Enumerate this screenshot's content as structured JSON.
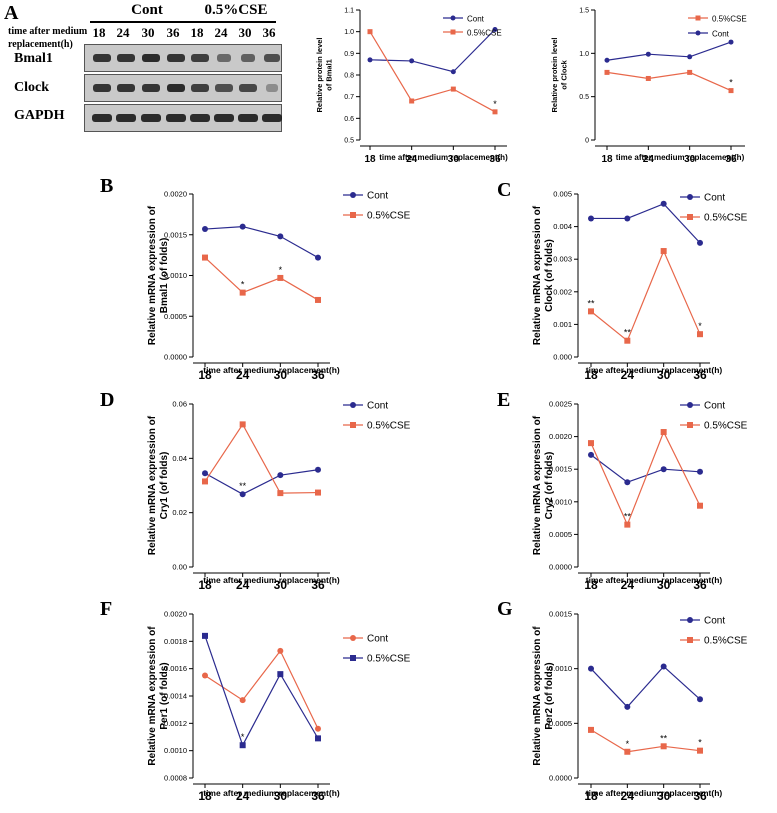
{
  "panel_letters": [
    "A",
    "B",
    "C",
    "D",
    "E",
    "F",
    "G"
  ],
  "blot": {
    "groups": [
      "Cont",
      "0.5%CSE"
    ],
    "header_line1": "time after medium",
    "header_line2": "replacement(h)",
    "times": [
      "18",
      "24",
      "30",
      "36",
      "18",
      "24",
      "30",
      "36"
    ],
    "rows": [
      "Bmal1",
      "Clock",
      "GAPDH"
    ],
    "colors": {
      "strip": "#c9c9c9",
      "band": "#1a1a1a"
    }
  },
  "colors": {
    "cont": "#2b2b8f",
    "cse": "#e8674a",
    "axis": "#000000"
  },
  "chart_data": [
    {
      "id": "A-bmal1",
      "type": "line",
      "categories": [
        "18",
        "24",
        "30",
        "36"
      ],
      "ylabel": "Relative protein level of Bmal1",
      "ylabel_lines": [
        "Relative protein level",
        "of Bmal1"
      ],
      "xlabel": "time after medium replacement(h)",
      "ylim": [
        0.5,
        1.1
      ],
      "yticks": [
        "0.5",
        "0.6",
        "0.7",
        "0.8",
        "0.9",
        "1.0",
        "1.1"
      ],
      "legend": "top-right",
      "legend_order": [
        "Cont",
        "0.5%CSE"
      ],
      "series": [
        {
          "name": "Cont",
          "values": [
            0.87,
            0.865,
            0.815,
            1.01
          ],
          "marks": [
            "",
            "",
            "",
            ""
          ]
        },
        {
          "name": "0.5%CSE",
          "values": [
            1.0,
            0.68,
            0.735,
            0.63
          ],
          "marks": [
            "",
            "",
            "",
            "*"
          ]
        }
      ]
    },
    {
      "id": "A-clock",
      "type": "line",
      "categories": [
        "18",
        "24",
        "30",
        "36"
      ],
      "ylabel": "Relative protein level of Clock",
      "ylabel_lines": [
        "Relative protein level",
        "of Clock"
      ],
      "xlabel": "time after medium replacement(h)",
      "ylim": [
        0,
        1.5
      ],
      "yticks": [
        "0",
        "0.5",
        "1.0",
        "1.5"
      ],
      "legend": "top-right",
      "legend_order": [
        "0.5%CSE",
        "Cont"
      ],
      "series": [
        {
          "name": "Cont",
          "values": [
            0.92,
            0.99,
            0.96,
            1.13
          ],
          "marks": [
            "",
            "",
            "",
            ""
          ]
        },
        {
          "name": "0.5%CSE",
          "values": [
            0.78,
            0.71,
            0.78,
            0.57
          ],
          "marks": [
            "",
            "",
            "",
            "*"
          ]
        }
      ]
    },
    {
      "id": "B",
      "type": "line",
      "categories": [
        "18",
        "24",
        "30",
        "36"
      ],
      "ylabel": "Relative mRNA expression of Bmal1 (of folds)",
      "ylabel_lines": [
        "Relative mRNA expression of",
        "Bmal1 (of folds)"
      ],
      "xlabel": "time after medium replacement(h)",
      "ylim": [
        0,
        0.002
      ],
      "yticks": [
        "0.0000",
        "0.0005",
        "0.0010",
        "0.0015",
        "0.0020"
      ],
      "legend": "top-right",
      "legend_order": [
        "Cont",
        "0.5%CSE"
      ],
      "series": [
        {
          "name": "Cont",
          "values": [
            0.00157,
            0.0016,
            0.00148,
            0.00122
          ],
          "marks": [
            "",
            "",
            "",
            ""
          ]
        },
        {
          "name": "0.5%CSE",
          "values": [
            0.00122,
            0.00079,
            0.00097,
            0.0007
          ],
          "marks": [
            "",
            "*",
            "*",
            ""
          ]
        }
      ]
    },
    {
      "id": "C",
      "type": "line",
      "categories": [
        "18",
        "24",
        "30",
        "36"
      ],
      "ylabel": "Relative mRNA expression of Clock (of folds)",
      "ylabel_lines": [
        "Relative mRNA expression of",
        "Clock (of folds)"
      ],
      "xlabel": "time after medium replacement(h)",
      "ylim": [
        0,
        0.005
      ],
      "yticks": [
        "0.000",
        "0.001",
        "0.002",
        "0.003",
        "0.004",
        "0.005"
      ],
      "legend": "top-right",
      "legend_order": [
        "Cont",
        "0.5%CSE"
      ],
      "series": [
        {
          "name": "Cont",
          "values": [
            0.00425,
            0.00425,
            0.0047,
            0.0035
          ],
          "marks": [
            "",
            "",
            "",
            ""
          ]
        },
        {
          "name": "0.5%CSE",
          "values": [
            0.0014,
            0.0005,
            0.00325,
            0.0007
          ],
          "marks": [
            "**",
            "**",
            "",
            "*"
          ]
        }
      ]
    },
    {
      "id": "D",
      "type": "line",
      "categories": [
        "18",
        "24",
        "30",
        "36"
      ],
      "ylabel": "Relative mRNA expression of Cry1 (of folds)",
      "ylabel_lines": [
        "Relative mRNA expression of",
        "Cry1 (of folds)"
      ],
      "xlabel": "time after medium replacement(h)",
      "ylim": [
        0,
        0.06
      ],
      "yticks": [
        "0.00",
        "0.02",
        "0.04",
        "0.06"
      ],
      "legend": "top-right",
      "legend_order": [
        "Cont",
        "0.5%CSE"
      ],
      "series": [
        {
          "name": "Cont",
          "values": [
            0.0345,
            0.0268,
            0.0338,
            0.0358
          ],
          "marks": [
            "",
            "**",
            "",
            ""
          ]
        },
        {
          "name": "0.5%CSE",
          "values": [
            0.0315,
            0.0525,
            0.0272,
            0.0274
          ],
          "marks": [
            "",
            "",
            "",
            ""
          ]
        }
      ]
    },
    {
      "id": "E",
      "type": "line",
      "categories": [
        "18",
        "24",
        "30",
        "36"
      ],
      "ylabel": "Relative mRNA expression of Cry2 (of folds)",
      "ylabel_lines": [
        "Relative mRNA expression of",
        "Cry2 (of folds)"
      ],
      "xlabel": "time after medium replacement(h)",
      "ylim": [
        0,
        0.0025
      ],
      "yticks": [
        "0.0000",
        "0.0005",
        "0.0010",
        "0.0015",
        "0.0020",
        "0.0025"
      ],
      "legend": "top-right",
      "legend_order": [
        "Cont",
        "0.5%CSE"
      ],
      "series": [
        {
          "name": "Cont",
          "values": [
            0.00172,
            0.0013,
            0.0015,
            0.00146
          ],
          "marks": [
            "",
            "",
            "",
            ""
          ]
        },
        {
          "name": "0.5%CSE",
          "values": [
            0.0019,
            0.00065,
            0.00207,
            0.00094
          ],
          "marks": [
            "",
            "**",
            "",
            ""
          ]
        }
      ]
    },
    {
      "id": "F",
      "type": "line",
      "categories": [
        "18",
        "24",
        "30",
        "36"
      ],
      "ylabel": "Relative mRNA expression of Per1 (of folds)",
      "ylabel_lines": [
        "Relative mRNA expression of",
        "Per1 (of folds)"
      ],
      "xlabel": "time after medium replacement(h)",
      "ylim": [
        0.0008,
        0.002
      ],
      "yticks": [
        "0.0008",
        "0.0010",
        "0.0012",
        "0.0014",
        "0.0016",
        "0.0018",
        "0.0020"
      ],
      "legend": "top-right",
      "legend_order": [
        "Cont",
        "0.5%CSE"
      ],
      "series": [
        {
          "name": "Cont",
          "values": [
            0.00155,
            0.00137,
            0.00173,
            0.00116
          ],
          "marks": [
            "",
            "",
            "",
            ""
          ],
          "color": "#e8674a",
          "marker": "circle"
        },
        {
          "name": "0.5%CSE",
          "values": [
            0.00184,
            0.00104,
            0.00156,
            0.00109
          ],
          "marks": [
            "",
            "*",
            "",
            ""
          ],
          "color": "#2b2b8f",
          "marker": "square"
        }
      ]
    },
    {
      "id": "G",
      "type": "line",
      "categories": [
        "18",
        "24",
        "30",
        "36"
      ],
      "ylabel": "Relative mRNA expression of Per2 (of folds)",
      "ylabel_lines": [
        "Relative mRNA expression of",
        "Per2 (of folds)"
      ],
      "xlabel": "time after medium replacement(h)",
      "ylim": [
        0,
        0.0015
      ],
      "yticks": [
        "0.0000",
        "0.0005",
        "0.0010",
        "0.0015"
      ],
      "legend": "top-right",
      "legend_order": [
        "Cont",
        "0.5%CSE"
      ],
      "series": [
        {
          "name": "Cont",
          "values": [
            0.001,
            0.00065,
            0.00102,
            0.00072
          ],
          "marks": [
            "",
            "",
            "",
            ""
          ]
        },
        {
          "name": "0.5%CSE",
          "values": [
            0.00044,
            0.00024,
            0.00029,
            0.00025
          ],
          "marks": [
            "",
            "*",
            "**",
            "*"
          ]
        }
      ]
    }
  ]
}
